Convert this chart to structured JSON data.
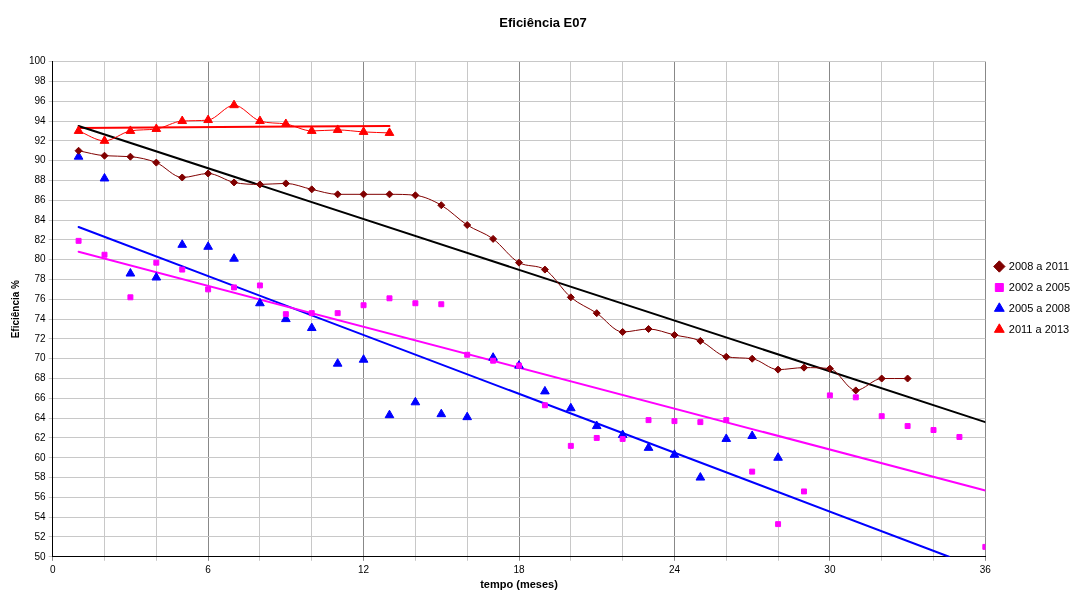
{
  "chart_data": {
    "type": "line",
    "title": "Eficiência E07",
    "xlabel": "tempo (meses)",
    "ylabel": "Eficiência %",
    "xlim": [
      0,
      36
    ],
    "xticks": [
      0,
      {
        "value": 2,
        "label": null
      },
      {
        "value": 4,
        "label": null
      },
      6,
      {
        "value": 8,
        "label": null
      },
      {
        "value": 10,
        "label": null
      },
      12,
      {
        "value": 14,
        "label": null
      },
      {
        "value": 16,
        "label": null
      },
      18,
      {
        "value": 20,
        "label": null
      },
      {
        "value": 22,
        "label": null
      },
      24,
      {
        "value": 26,
        "label": null
      },
      {
        "value": 28,
        "label": null
      },
      30,
      {
        "value": 32,
        "label": null
      },
      {
        "value": 34,
        "label": null
      },
      36
    ],
    "ylim": [
      50,
      100
    ],
    "yticks": [
      50,
      52,
      54,
      56,
      58,
      60,
      62,
      64,
      66,
      68,
      70,
      72,
      74,
      76,
      78,
      80,
      82,
      84,
      86,
      88,
      90,
      92,
      94,
      96,
      98,
      100
    ],
    "grid": true,
    "legend": "right",
    "series": [
      {
        "name": "2008 a 2011",
        "type": "line",
        "marker": "diamond",
        "color": "#800000",
        "x": [
          1,
          2,
          3,
          4,
          5,
          6,
          7,
          8,
          9,
          10,
          11,
          12,
          13,
          14,
          15,
          16,
          17,
          18,
          19,
          20,
          21,
          22,
          23,
          24,
          25,
          26,
          27,
          28,
          29,
          30,
          31,
          32,
          33
        ],
        "values": [
          91.0,
          90.5,
          90.4,
          89.8,
          88.3,
          88.7,
          87.8,
          87.6,
          87.7,
          87.1,
          86.6,
          86.6,
          86.6,
          86.5,
          85.5,
          83.5,
          82.1,
          79.7,
          79.0,
          76.2,
          74.6,
          72.7,
          73.0,
          72.4,
          71.8,
          70.2,
          70.0,
          68.9,
          69.1,
          69.0,
          66.8,
          68.0,
          68.0
        ]
      },
      {
        "name": "2002 a 2005",
        "type": "scatter",
        "marker": "square",
        "color": "#ff00ff",
        "x": [
          1,
          2,
          3,
          4,
          5,
          6,
          7,
          8,
          9,
          10,
          11,
          12,
          13,
          14,
          15,
          16,
          17,
          18,
          19,
          20,
          21,
          22,
          23,
          24,
          25,
          26,
          27,
          28,
          29,
          30,
          31,
          32,
          33,
          34,
          35,
          36
        ],
        "values": [
          81.9,
          80.5,
          76.2,
          79.7,
          79.0,
          77.0,
          77.2,
          77.4,
          74.5,
          74.6,
          74.6,
          75.4,
          76.1,
          75.6,
          75.5,
          70.4,
          69.8,
          69.3,
          65.3,
          61.2,
          62.0,
          61.9,
          63.8,
          63.7,
          63.6,
          63.8,
          58.6,
          53.3,
          56.6,
          66.3,
          66.1,
          64.2,
          63.2,
          62.8,
          62.1,
          51.0
        ]
      },
      {
        "name": "2005 a 2008",
        "type": "scatter",
        "marker": "triangle",
        "color": "#0000ff",
        "x": [
          1,
          2,
          3,
          4,
          5,
          6,
          7,
          8,
          9,
          10,
          11,
          12,
          13,
          14,
          15,
          16,
          17,
          18,
          19,
          20,
          21,
          22,
          23,
          24,
          25,
          26,
          27,
          28
        ],
        "values": [
          90.4,
          88.2,
          78.6,
          78.2,
          81.5,
          81.3,
          80.1,
          75.6,
          74.0,
          73.1,
          69.5,
          69.9,
          64.3,
          65.6,
          64.4,
          64.1,
          70.1,
          69.3,
          66.7,
          65.0,
          63.2,
          62.3,
          61.0,
          60.3,
          58.0,
          61.9,
          62.2,
          60.0
        ]
      },
      {
        "name": "2011 a 2013",
        "type": "line",
        "marker": "triangle",
        "color": "#ff0000",
        "x": [
          1,
          2,
          3,
          4,
          5,
          6,
          7,
          8,
          9,
          10,
          11,
          12,
          13
        ],
        "values": [
          93.0,
          92.0,
          93.0,
          93.2,
          94.0,
          94.1,
          95.6,
          94.0,
          93.7,
          93.0,
          93.1,
          92.9,
          92.8
        ]
      },
      {
        "type": "line",
        "marker": "none",
        "color": "#000000",
        "x": [
          1,
          36
        ],
        "values": [
          93.5,
          63.6
        ]
      },
      {
        "type": "line",
        "marker": "none",
        "color": "#ff00ff",
        "x": [
          1,
          36
        ],
        "values": [
          80.8,
          56.7
        ]
      },
      {
        "type": "line",
        "marker": "none",
        "color": "#0000ff",
        "x": [
          1,
          34.6
        ],
        "values": [
          83.3,
          50
        ]
      },
      {
        "type": "line",
        "marker": "none",
        "color": "#ff0000",
        "x": [
          1,
          13
        ],
        "values": [
          93.3,
          93.5
        ]
      }
    ]
  }
}
